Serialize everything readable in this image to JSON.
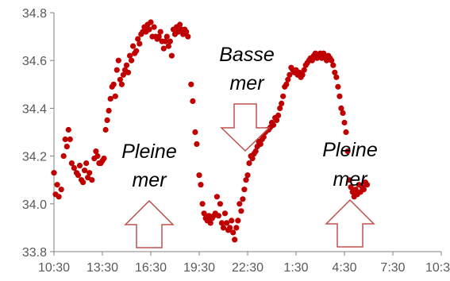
{
  "chart_data": {
    "type": "scatter",
    "title": "",
    "xlabel": "",
    "ylabel": "",
    "x_tick_labels": [
      "10:30",
      "13:30",
      "16:30",
      "19:30",
      "22:30",
      "1:30",
      "4:30",
      "7:30",
      "10:30"
    ],
    "y_tick_labels": [
      "33.8",
      "34.0",
      "34.2",
      "34.4",
      "34.6",
      "34.8"
    ],
    "ylim": [
      33.8,
      34.8
    ],
    "xlim_hours": [
      0,
      24
    ],
    "marker_color": "#c00000",
    "grid": false,
    "legend": "none",
    "points": [
      [
        0.0,
        34.13
      ],
      [
        0.1,
        34.04
      ],
      [
        0.2,
        34.08
      ],
      [
        0.3,
        34.03
      ],
      [
        0.45,
        34.06
      ],
      [
        0.6,
        34.2
      ],
      [
        0.7,
        34.27
      ],
      [
        0.8,
        34.24
      ],
      [
        0.9,
        34.31
      ],
      [
        1.0,
        34.27
      ],
      [
        1.1,
        34.17
      ],
      [
        1.25,
        34.15
      ],
      [
        1.4,
        34.13
      ],
      [
        1.5,
        34.12
      ],
      [
        1.6,
        34.16
      ],
      [
        1.7,
        34.1
      ],
      [
        1.8,
        34.09
      ],
      [
        1.9,
        34.14
      ],
      [
        2.0,
        34.17
      ],
      [
        2.1,
        34.11
      ],
      [
        2.2,
        34.13
      ],
      [
        2.35,
        34.1
      ],
      [
        2.5,
        34.19
      ],
      [
        2.6,
        34.22
      ],
      [
        2.7,
        34.2
      ],
      [
        2.8,
        34.17
      ],
      [
        2.9,
        34.17
      ],
      [
        3.0,
        34.18
      ],
      [
        3.1,
        34.19
      ],
      [
        3.2,
        34.31
      ],
      [
        3.3,
        34.35
      ],
      [
        3.4,
        34.39
      ],
      [
        3.5,
        34.44
      ],
      [
        3.6,
        34.49
      ],
      [
        3.7,
        34.5
      ],
      [
        3.8,
        34.45
      ],
      [
        3.9,
        34.56
      ],
      [
        4.0,
        34.6
      ],
      [
        4.1,
        34.52
      ],
      [
        4.2,
        34.5
      ],
      [
        4.3,
        34.54
      ],
      [
        4.4,
        34.56
      ],
      [
        4.5,
        34.58
      ],
      [
        4.6,
        34.55
      ],
      [
        4.7,
        34.62
      ],
      [
        4.8,
        34.6
      ],
      [
        4.9,
        34.66
      ],
      [
        5.0,
        34.63
      ],
      [
        5.1,
        34.64
      ],
      [
        5.2,
        34.69
      ],
      [
        5.3,
        34.67
      ],
      [
        5.4,
        34.71
      ],
      [
        5.5,
        34.72
      ],
      [
        5.6,
        34.74
      ],
      [
        5.7,
        34.72
      ],
      [
        5.8,
        34.75
      ],
      [
        5.9,
        34.73
      ],
      [
        6.0,
        34.76
      ],
      [
        6.1,
        34.7
      ],
      [
        6.2,
        34.74
      ],
      [
        6.3,
        34.7
      ],
      [
        6.4,
        34.69
      ],
      [
        6.5,
        34.7
      ],
      [
        6.6,
        34.72
      ],
      [
        6.7,
        34.68
      ],
      [
        6.8,
        34.65
      ],
      [
        6.9,
        34.68
      ],
      [
        7.0,
        34.7
      ],
      [
        7.1,
        34.66
      ],
      [
        7.2,
        34.68
      ],
      [
        7.3,
        34.62
      ],
      [
        7.4,
        34.73
      ],
      [
        7.5,
        34.71
      ],
      [
        7.6,
        34.74
      ],
      [
        7.7,
        34.72
      ],
      [
        7.8,
        34.75
      ],
      [
        7.9,
        34.73
      ],
      [
        8.0,
        34.71
      ],
      [
        8.1,
        34.73
      ],
      [
        8.2,
        34.72
      ],
      [
        8.3,
        34.7
      ],
      [
        8.5,
        34.5
      ],
      [
        8.6,
        34.43
      ],
      [
        8.75,
        34.3
      ],
      [
        8.85,
        34.25
      ],
      [
        9.0,
        34.12
      ],
      [
        9.1,
        34.08
      ],
      [
        9.2,
        34.0
      ],
      [
        9.3,
        33.96
      ],
      [
        9.4,
        33.94
      ],
      [
        9.5,
        33.93
      ],
      [
        9.6,
        33.95
      ],
      [
        9.7,
        33.92
      ],
      [
        9.8,
        33.94
      ],
      [
        9.9,
        33.95
      ],
      [
        10.0,
        33.96
      ],
      [
        10.1,
        34.03
      ],
      [
        10.2,
        33.95
      ],
      [
        10.3,
        34.0
      ],
      [
        10.4,
        33.92
      ],
      [
        10.5,
        33.9
      ],
      [
        10.6,
        33.96
      ],
      [
        10.7,
        33.92
      ],
      [
        10.8,
        33.89
      ],
      [
        10.9,
        33.9
      ],
      [
        11.0,
        33.93
      ],
      [
        11.1,
        33.88
      ],
      [
        11.2,
        33.85
      ],
      [
        11.3,
        33.9
      ],
      [
        11.4,
        33.93
      ],
      [
        11.5,
        34.0
      ],
      [
        11.6,
        33.97
      ],
      [
        11.7,
        34.02
      ],
      [
        11.8,
        34.06
      ],
      [
        11.9,
        34.1
      ],
      [
        12.0,
        34.12
      ],
      [
        12.1,
        34.17
      ],
      [
        12.2,
        34.2
      ],
      [
        12.3,
        34.19
      ],
      [
        12.4,
        34.21
      ],
      [
        12.5,
        34.22
      ],
      [
        12.6,
        34.24
      ],
      [
        12.7,
        34.26
      ],
      [
        12.8,
        34.25
      ],
      [
        12.9,
        34.27
      ],
      [
        13.0,
        34.28
      ],
      [
        13.1,
        34.3
      ],
      [
        13.2,
        34.31
      ],
      [
        13.3,
        34.31
      ],
      [
        13.4,
        34.32
      ],
      [
        13.5,
        34.34
      ],
      [
        13.6,
        34.33
      ],
      [
        13.7,
        34.36
      ],
      [
        13.8,
        34.35
      ],
      [
        13.9,
        34.37
      ],
      [
        14.0,
        34.4
      ],
      [
        14.1,
        34.42
      ],
      [
        14.2,
        34.45
      ],
      [
        14.3,
        34.49
      ],
      [
        14.4,
        34.5
      ],
      [
        14.5,
        34.52
      ],
      [
        14.6,
        34.54
      ],
      [
        14.7,
        34.57
      ],
      [
        14.8,
        34.56
      ],
      [
        14.9,
        34.55
      ],
      [
        15.0,
        34.56
      ],
      [
        15.1,
        34.54
      ],
      [
        15.2,
        34.55
      ],
      [
        15.3,
        34.53
      ],
      [
        15.4,
        34.54
      ],
      [
        15.5,
        34.56
      ],
      [
        15.6,
        34.58
      ],
      [
        15.7,
        34.59
      ],
      [
        15.8,
        34.6
      ],
      [
        15.9,
        34.61
      ],
      [
        16.0,
        34.6
      ],
      [
        16.1,
        34.62
      ],
      [
        16.2,
        34.63
      ],
      [
        16.3,
        34.61
      ],
      [
        16.4,
        34.62
      ],
      [
        16.5,
        34.63
      ],
      [
        16.6,
        34.61
      ],
      [
        16.7,
        34.63
      ],
      [
        16.8,
        34.62
      ],
      [
        16.9,
        34.6
      ],
      [
        17.0,
        34.62
      ],
      [
        17.1,
        34.61
      ],
      [
        17.2,
        34.6
      ],
      [
        17.3,
        34.58
      ],
      [
        17.4,
        34.55
      ],
      [
        17.5,
        34.53
      ],
      [
        17.6,
        34.49
      ],
      [
        17.7,
        34.45
      ],
      [
        17.8,
        34.4
      ],
      [
        17.9,
        34.38
      ],
      [
        18.0,
        34.34
      ],
      [
        18.1,
        34.3
      ],
      [
        18.2,
        34.22
      ],
      [
        18.3,
        34.1
      ],
      [
        18.4,
        34.07
      ],
      [
        18.5,
        34.05
      ],
      [
        18.6,
        34.03
      ],
      [
        18.7,
        34.06
      ],
      [
        18.8,
        34.04
      ],
      [
        18.9,
        34.08
      ],
      [
        19.0,
        34.05
      ],
      [
        19.1,
        34.07
      ],
      [
        19.2,
        34.06
      ],
      [
        19.3,
        34.09
      ],
      [
        19.4,
        34.08
      ]
    ],
    "annotations": [
      {
        "lines": [
          "Pleine",
          "mer"
        ],
        "arrow": "up"
      },
      {
        "lines": [
          "Basse",
          "mer"
        ],
        "arrow": "down"
      },
      {
        "lines": [
          "Pleine",
          "mer"
        ],
        "arrow": "up"
      }
    ]
  }
}
